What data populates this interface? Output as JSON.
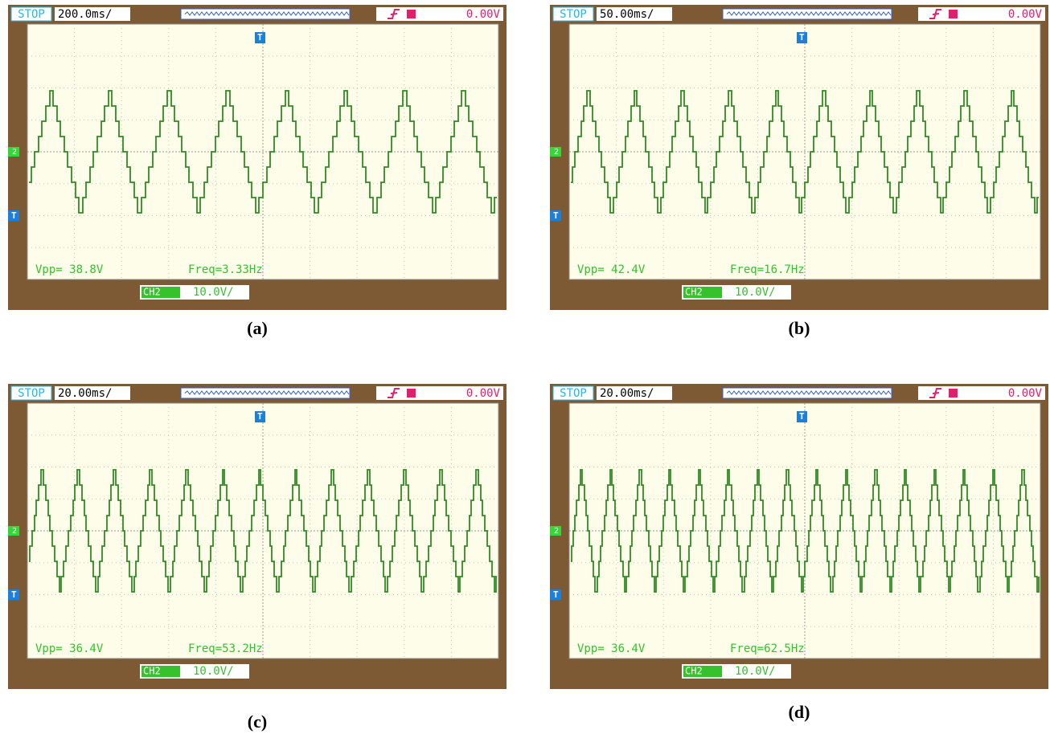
{
  "panels": [
    {
      "caption": "(a)",
      "status": "STOP",
      "timebase": "200.0ms/",
      "trigger_level": "0.00V",
      "vpp": "Vpp= 38.8V",
      "freq": "Freq=3.33Hz",
      "channel": "CH2",
      "scale": "10.0V/",
      "trigger_marker": "T",
      "channel_marker": "2"
    },
    {
      "caption": "(b)",
      "status": "STOP",
      "timebase": "50.00ms/",
      "trigger_level": "0.00V",
      "vpp": "Vpp= 42.4V",
      "freq": "Freq=16.7Hz",
      "channel": "CH2",
      "scale": "10.0V/",
      "trigger_marker": "T",
      "channel_marker": "2"
    },
    {
      "caption": "(c)",
      "status": "STOP",
      "timebase": "20.00ms/",
      "trigger_level": "0.00V",
      "vpp": "Vpp= 36.4V",
      "freq": "Freq=53.2Hz",
      "channel": "CH2",
      "scale": "10.0V/",
      "trigger_marker": "T",
      "channel_marker": "2"
    },
    {
      "caption": "(d)",
      "status": "STOP",
      "timebase": "20.00ms/",
      "trigger_level": "0.00V",
      "vpp": "Vpp= 36.4V",
      "freq": "Freq=62.5Hz",
      "channel": "CH2",
      "scale": "10.0V/",
      "trigger_marker": "T",
      "channel_marker": "2"
    }
  ]
}
